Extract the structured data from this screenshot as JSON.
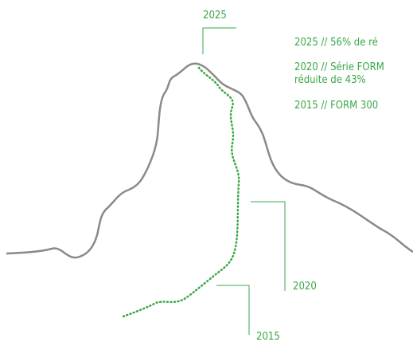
{
  "callouts": [
    {
      "year": "2025"
    },
    {
      "year": "2020"
    },
    {
      "year": "2015"
    }
  ],
  "legend": [
    {
      "lines": [
        "2025 // 56% de ré"
      ]
    },
    {
      "lines": [
        "2020 // Série FORM",
        "réduite de 43%"
      ]
    },
    {
      "lines": [
        "2015 // FORM 300"
      ]
    }
  ]
}
